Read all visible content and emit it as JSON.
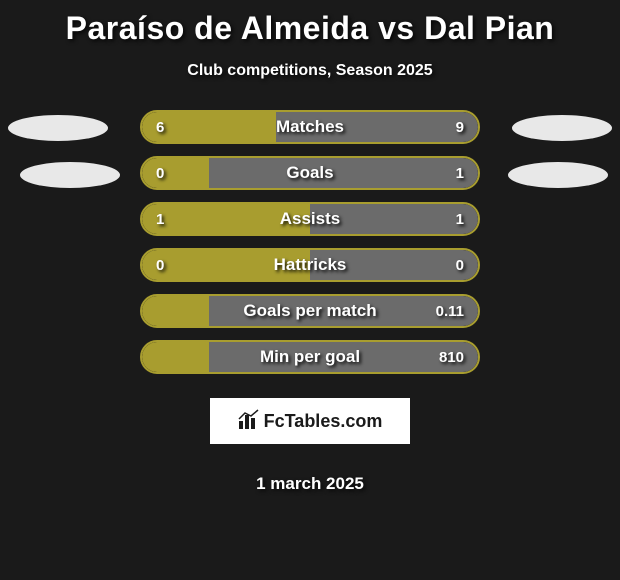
{
  "title": "Paraíso de Almeida vs Dal Pian",
  "subtitle": "Club competitions, Season 2025",
  "date": "1 march 2025",
  "brand": {
    "icon": "📊",
    "text": "FcTables.com"
  },
  "colors": {
    "background": "#1a1a1a",
    "player1": "#a89d2f",
    "player2": "#6b6b6b",
    "text": "#ffffff",
    "placeholder": "#e8e8e8",
    "brand_bg": "#ffffff",
    "brand_text": "#1a1a1a"
  },
  "stats": [
    {
      "label": "Matches",
      "left_value": "6",
      "right_value": "9",
      "left_num": 6,
      "right_num": 9,
      "left_pct": 40,
      "right_pct": 60
    },
    {
      "label": "Goals",
      "left_value": "0",
      "right_value": "1",
      "left_num": 0,
      "right_num": 1,
      "left_pct": 20,
      "right_pct": 80
    },
    {
      "label": "Assists",
      "left_value": "1",
      "right_value": "1",
      "left_num": 1,
      "right_num": 1,
      "left_pct": 50,
      "right_pct": 50
    },
    {
      "label": "Hattricks",
      "left_value": "0",
      "right_value": "0",
      "left_num": 0,
      "right_num": 0,
      "left_pct": 50,
      "right_pct": 50
    },
    {
      "label": "Goals per match",
      "left_value": "",
      "right_value": "0.11",
      "left_num": 0,
      "right_num": 0.11,
      "left_pct": 20,
      "right_pct": 80
    },
    {
      "label": "Min per goal",
      "left_value": "",
      "right_value": "810",
      "left_num": 0,
      "right_num": 810,
      "left_pct": 20,
      "right_pct": 80
    }
  ]
}
